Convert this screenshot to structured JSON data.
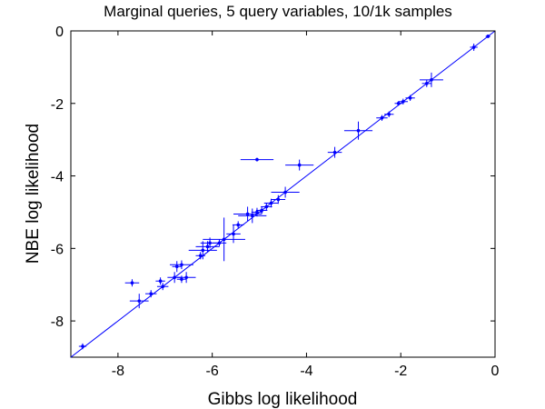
{
  "chart_data": {
    "type": "scatter",
    "title": "Marginal queries, 5 query variables, 10/1k samples",
    "xlabel": "Gibbs log likelihood",
    "ylabel": "NBE log likelihood",
    "xlim": [
      -9,
      0
    ],
    "ylim": [
      -9,
      0
    ],
    "x_ticks": [
      -8,
      -6,
      -4,
      -2,
      0
    ],
    "y_ticks": [
      -8,
      -6,
      -4,
      -2,
      0
    ],
    "grid": false,
    "legend": "none",
    "reference_line": "y = x",
    "color": "#0000ff",
    "points": [
      {
        "x": -0.15,
        "y": -0.15,
        "xerr": 0.05,
        "yerr": 0.05
      },
      {
        "x": -0.45,
        "y": -0.45,
        "xerr": 0.08,
        "yerr": 0.1
      },
      {
        "x": -1.35,
        "y": -1.35,
        "xerr": 0.25,
        "yerr": 0.2
      },
      {
        "x": -1.45,
        "y": -1.45,
        "xerr": 0.1,
        "yerr": 0.1
      },
      {
        "x": -1.8,
        "y": -1.85,
        "xerr": 0.1,
        "yerr": 0.08
      },
      {
        "x": -1.95,
        "y": -1.95,
        "xerr": 0.1,
        "yerr": 0.08
      },
      {
        "x": -2.05,
        "y": -2.0,
        "xerr": 0.08,
        "yerr": 0.06
      },
      {
        "x": -2.25,
        "y": -2.3,
        "xerr": 0.1,
        "yerr": 0.08
      },
      {
        "x": -2.4,
        "y": -2.4,
        "xerr": 0.12,
        "yerr": 0.08
      },
      {
        "x": -2.9,
        "y": -2.75,
        "xerr": 0.3,
        "yerr": 0.25
      },
      {
        "x": -3.4,
        "y": -3.35,
        "xerr": 0.15,
        "yerr": 0.15
      },
      {
        "x": -4.15,
        "y": -3.7,
        "xerr": 0.3,
        "yerr": 0.15
      },
      {
        "x": -5.05,
        "y": -3.55,
        "xerr": 0.35,
        "yerr": 0.05
      },
      {
        "x": -4.45,
        "y": -4.45,
        "xerr": 0.3,
        "yerr": 0.15
      },
      {
        "x": -4.6,
        "y": -4.65,
        "xerr": 0.15,
        "yerr": 0.12
      },
      {
        "x": -4.75,
        "y": -4.75,
        "xerr": 0.15,
        "yerr": 0.12
      },
      {
        "x": -4.85,
        "y": -4.85,
        "xerr": 0.12,
        "yerr": 0.1
      },
      {
        "x": -4.95,
        "y": -4.95,
        "xerr": 0.12,
        "yerr": 0.1
      },
      {
        "x": -5.05,
        "y": -5.0,
        "xerr": 0.12,
        "yerr": 0.12
      },
      {
        "x": -5.15,
        "y": -5.1,
        "xerr": 0.3,
        "yerr": 0.2
      },
      {
        "x": -5.25,
        "y": -5.05,
        "xerr": 0.3,
        "yerr": 0.2
      },
      {
        "x": -5.45,
        "y": -5.35,
        "xerr": 0.12,
        "yerr": 0.1
      },
      {
        "x": -5.55,
        "y": -5.6,
        "xerr": 0.15,
        "yerr": 0.25
      },
      {
        "x": -5.75,
        "y": -5.75,
        "xerr": 0.45,
        "yerr": 0.6
      },
      {
        "x": -5.85,
        "y": -5.85,
        "xerr": 0.15,
        "yerr": 0.1
      },
      {
        "x": -6.05,
        "y": -5.85,
        "xerr": 0.2,
        "yerr": 0.15
      },
      {
        "x": -6.1,
        "y": -5.95,
        "xerr": 0.25,
        "yerr": 0.15
      },
      {
        "x": -6.2,
        "y": -6.05,
        "xerr": 0.3,
        "yerr": 0.25
      },
      {
        "x": -6.25,
        "y": -6.2,
        "xerr": 0.1,
        "yerr": 0.1
      },
      {
        "x": -6.65,
        "y": -6.45,
        "xerr": 0.25,
        "yerr": 0.12
      },
      {
        "x": -6.55,
        "y": -6.8,
        "xerr": 0.2,
        "yerr": 0.15
      },
      {
        "x": -6.65,
        "y": -6.85,
        "xerr": 0.1,
        "yerr": 0.1
      },
      {
        "x": -6.75,
        "y": -6.5,
        "xerr": 0.1,
        "yerr": 0.15
      },
      {
        "x": -6.8,
        "y": -6.8,
        "xerr": 0.15,
        "yerr": 0.15
      },
      {
        "x": -7.05,
        "y": -7.05,
        "xerr": 0.12,
        "yerr": 0.1
      },
      {
        "x": -7.1,
        "y": -6.9,
        "xerr": 0.1,
        "yerr": 0.1
      },
      {
        "x": -7.3,
        "y": -7.25,
        "xerr": 0.12,
        "yerr": 0.1
      },
      {
        "x": -7.55,
        "y": -7.45,
        "xerr": 0.2,
        "yerr": 0.2
      },
      {
        "x": -7.7,
        "y": -6.95,
        "xerr": 0.15,
        "yerr": 0.1
      },
      {
        "x": -8.75,
        "y": -8.7,
        "xerr": 0.08,
        "yerr": 0.08
      }
    ]
  }
}
